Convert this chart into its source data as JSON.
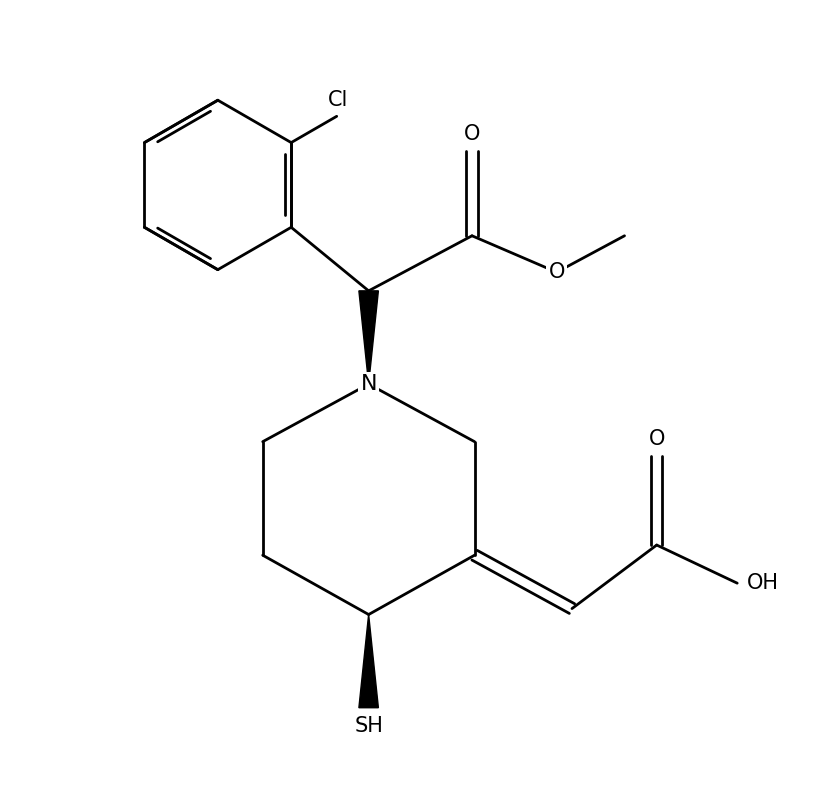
{
  "background": "#ffffff",
  "line_color": "#000000",
  "line_width": 2.0,
  "font_size": 15,
  "fig_width": 8.22,
  "fig_height": 8.02,
  "dpi": 100,
  "xlim": [
    0.5,
    9.5
  ],
  "ylim": [
    0.3,
    9.7
  ]
}
